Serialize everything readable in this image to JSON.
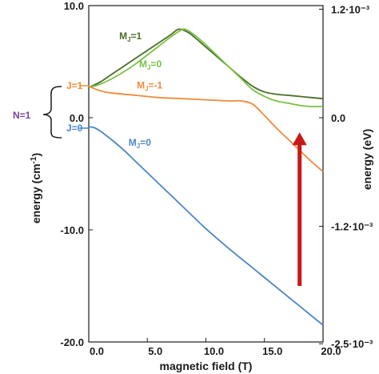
{
  "chart_data": {
    "type": "line",
    "xlabel": "magnetic field (T)",
    "ylabel_left": "energy (cm",
    "ylabel_left_sup": "-1",
    "ylabel_left_close": ")",
    "ylabel_right": "energy (eV)",
    "xlim": [
      0,
      20
    ],
    "ylim": [
      -20,
      10
    ],
    "x_ticks": [
      "0.0",
      "5.0",
      "10.0",
      "15.0",
      "20.0"
    ],
    "y_ticks_left": [
      {
        "value": 10,
        "label": "10.0"
      },
      {
        "value": 0,
        "label": "0.0"
      },
      {
        "value": -10,
        "label": "-10.0"
      },
      {
        "value": -20,
        "label": "-20.0"
      }
    ],
    "y_ticks_right": [
      {
        "value": 9.68,
        "label": "1.2·10⁻³"
      },
      {
        "value": 0,
        "label": "0.0"
      },
      {
        "value": -9.68,
        "label": "-1.2·10⁻³"
      },
      {
        "value": -20.16,
        "label": "-2.5·10⁻³"
      }
    ],
    "grid": false,
    "series": [
      {
        "color": "#4a6e2a",
        "x": [
          0,
          1,
          2,
          3,
          4,
          5,
          6,
          7,
          7.7,
          8.5,
          9,
          10,
          11,
          12,
          13,
          14,
          15,
          16,
          17,
          18,
          19,
          20
        ],
        "y": [
          2.7,
          3.2,
          3.9,
          4.6,
          5.3,
          6.0,
          6.7,
          7.4,
          7.9,
          7.6,
          7.2,
          6.3,
          5.4,
          4.5,
          3.6,
          2.8,
          2.3,
          2.1,
          2.0,
          1.9,
          1.8,
          1.7
        ]
      },
      {
        "color": "#7ac143",
        "x": [
          0,
          1,
          2,
          3,
          4,
          5,
          6,
          7,
          7.7,
          8.2,
          9,
          10,
          11,
          12,
          13,
          14,
          15,
          16,
          17,
          18,
          19,
          20
        ],
        "y": [
          2.7,
          3.0,
          3.5,
          4.1,
          4.8,
          5.6,
          6.4,
          7.2,
          7.7,
          7.9,
          7.4,
          6.5,
          5.5,
          4.5,
          3.5,
          2.5,
          1.9,
          1.5,
          1.3,
          1.1,
          1.0,
          1.0
        ]
      },
      {
        "color": "#f08a3c",
        "x": [
          0,
          1,
          2,
          4,
          6,
          8,
          10,
          12,
          13,
          14,
          15,
          16,
          17,
          18,
          19,
          20
        ],
        "y": [
          2.8,
          2.4,
          2.2,
          2.0,
          1.8,
          1.7,
          1.6,
          1.5,
          1.5,
          1.2,
          0.2,
          -0.9,
          -1.9,
          -2.9,
          -3.9,
          -4.8
        ]
      },
      {
        "color": "#4a86c8",
        "x": [
          0,
          0.5,
          1,
          1.5,
          2,
          3,
          4,
          5,
          6,
          8,
          10,
          12,
          14,
          16,
          18,
          20
        ],
        "y": [
          -0.8,
          -0.9,
          -1.2,
          -1.6,
          -2.0,
          -2.9,
          -3.9,
          -4.9,
          -5.9,
          -7.9,
          -9.9,
          -11.7,
          -13.4,
          -15.1,
          -16.8,
          -18.5
        ]
      }
    ],
    "annotations": [
      {
        "text": "M",
        "sub": "J",
        "rest": "=1",
        "color": "#4a6e2a",
        "x": 2.6,
        "y": 7.0
      },
      {
        "text": "M",
        "sub": "J",
        "rest": "=0",
        "color": "#7ac143",
        "x": 4.3,
        "y": 4.5
      },
      {
        "text": "M",
        "sub": "J",
        "rest": "=-1",
        "color": "#f08a3c",
        "x": 4.1,
        "y": 2.6
      },
      {
        "text": "M",
        "sub": "J",
        "rest": "=0",
        "color": "#4a86c8",
        "x": 3.4,
        "y": -2.5
      }
    ],
    "state_labels": [
      {
        "text": "J=1",
        "color": "#f08a3c"
      },
      {
        "text": "J=0",
        "color": "#4a86c8"
      },
      {
        "text": "N=1",
        "color": "#7b3f9e"
      }
    ],
    "arrow": {
      "color": "#c81818",
      "x": 18.0,
      "y_from": -15.0,
      "y_to": -1.3
    }
  }
}
